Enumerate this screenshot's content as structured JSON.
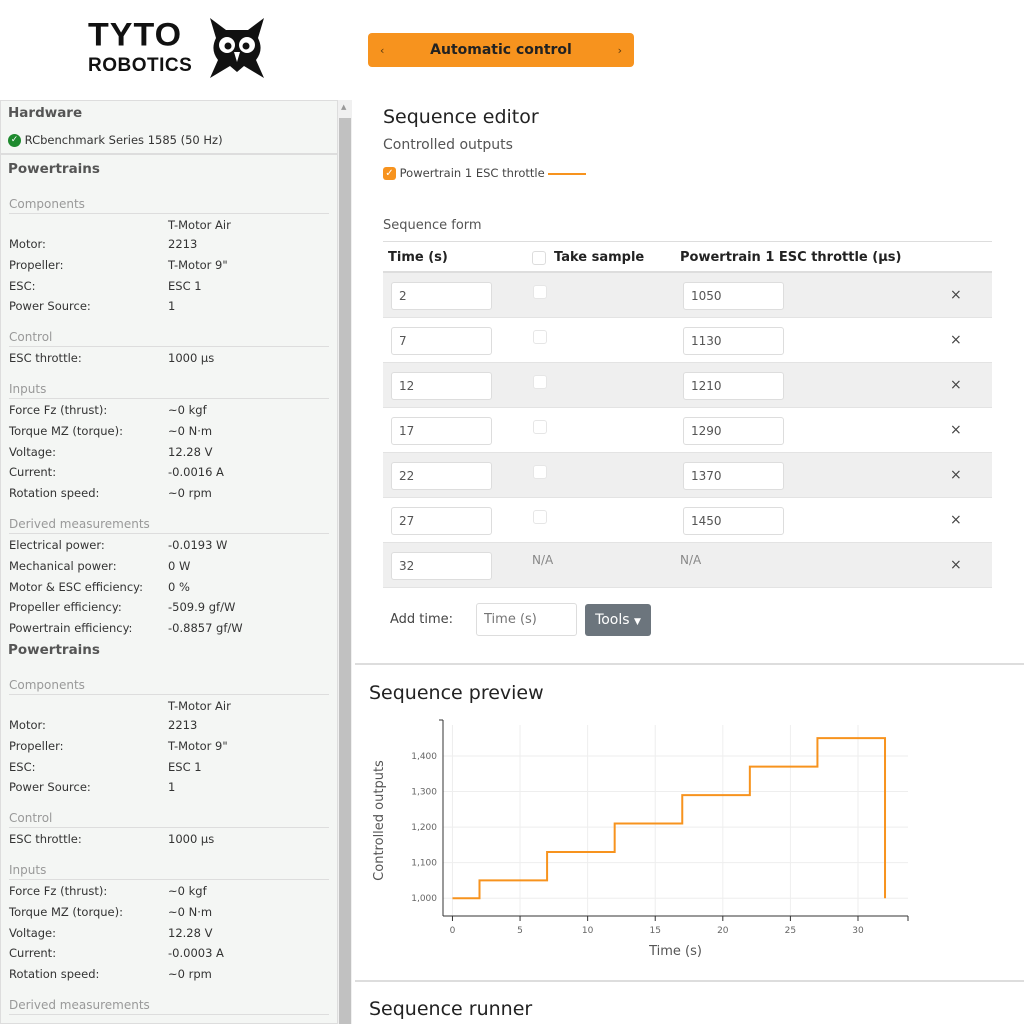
{
  "logo": {
    "line1": "TYTO",
    "line2": "ROBOTICS"
  },
  "mode": {
    "label": "Automatic control",
    "prev": "‹",
    "next": "›"
  },
  "sidebar": {
    "hardware_title": "Hardware",
    "device": "RCbenchmark Series 1585 (50 Hz)",
    "device_status_color": "#1e8a2e",
    "powertrains": [
      {
        "title": "Powertrains",
        "component_name": "T-Motor Air",
        "sections": [
          {
            "label": "Components",
            "rows": [
              [
                "Motor:",
                "2213"
              ],
              [
                "Propeller:",
                "T-Motor 9\""
              ],
              [
                "ESC:",
                "ESC 1"
              ],
              [
                "Power Source:",
                "1"
              ]
            ]
          },
          {
            "label": "Control",
            "rows": [
              [
                "ESC throttle:",
                "1000 µs"
              ]
            ]
          },
          {
            "label": "Inputs",
            "rows": [
              [
                "Force Fz (thrust):",
                "~0 kgf"
              ],
              [
                "Torque MZ (torque):",
                "~0 N·m"
              ],
              [
                "Voltage:",
                "12.28 V"
              ],
              [
                "Current:",
                "-0.0016 A"
              ],
              [
                "Rotation speed:",
                "~0 rpm"
              ]
            ]
          },
          {
            "label": "Derived measurements",
            "rows": [
              [
                "Electrical power:",
                "-0.0193 W"
              ],
              [
                "Mechanical power:",
                "0 W"
              ],
              [
                "Motor & ESC efficiency:",
                "0 %"
              ],
              [
                "Propeller efficiency:",
                "-509.9 gf/W"
              ],
              [
                "Powertrain efficiency:",
                "-0.8857 gf/W"
              ]
            ]
          }
        ]
      },
      {
        "title": "Powertrains",
        "component_name": "T-Motor Air",
        "sections": [
          {
            "label": "Components",
            "rows": [
              [
                "Motor:",
                "2213"
              ],
              [
                "Propeller:",
                "T-Motor 9\""
              ],
              [
                "ESC:",
                "ESC 1"
              ],
              [
                "Power Source:",
                "1"
              ]
            ]
          },
          {
            "label": "Control",
            "rows": [
              [
                "ESC throttle:",
                "1000 µs"
              ]
            ]
          },
          {
            "label": "Inputs",
            "rows": [
              [
                "Force Fz (thrust):",
                "~0 kgf"
              ],
              [
                "Torque MZ (torque):",
                "~0 N·m"
              ],
              [
                "Voltage:",
                "12.28 V"
              ],
              [
                "Current:",
                "-0.0003 A"
              ],
              [
                "Rotation speed:",
                "~0 rpm"
              ]
            ]
          },
          {
            "label": "Derived measurements",
            "rows": []
          }
        ]
      }
    ]
  },
  "editor": {
    "title": "Sequence editor",
    "controlled_outputs_label": "Controlled outputs",
    "output_label": "Powertrain 1 ESC throttle",
    "output_checked": true,
    "accent": "#f7931e",
    "form_label": "Sequence form",
    "columns": [
      "Time (s)",
      "Take sample",
      "Powertrain 1 ESC throttle (µs)"
    ],
    "rows": [
      {
        "time": "2",
        "sample": false,
        "throttle": "1050"
      },
      {
        "time": "7",
        "sample": false,
        "throttle": "1130"
      },
      {
        "time": "12",
        "sample": false,
        "throttle": "1210"
      },
      {
        "time": "17",
        "sample": false,
        "throttle": "1290"
      },
      {
        "time": "22",
        "sample": false,
        "throttle": "1370"
      },
      {
        "time": "27",
        "sample": false,
        "throttle": "1450"
      },
      {
        "time": "32",
        "sample": null,
        "throttle": null,
        "na": "N/A"
      }
    ],
    "delete_glyph": "×",
    "add_time_label": "Add time:",
    "add_time_placeholder": "Time (s)",
    "tools_label": "Tools"
  },
  "preview": {
    "title": "Sequence preview"
  },
  "runner": {
    "title": "Sequence runner"
  },
  "chart_data": {
    "type": "line",
    "step": true,
    "xlabel": "Time (s)",
    "ylabel": "Controlled outputs",
    "xlim": [
      -0.7,
      33.7
    ],
    "ylim": [
      950,
      1487
    ],
    "xticks": [
      0,
      5,
      10,
      15,
      20,
      25,
      30
    ],
    "yticks": [
      1000,
      1100,
      1200,
      1300,
      1400
    ],
    "ytick_labels": [
      "1,000",
      "1,100",
      "1,200",
      "1,300",
      "1,400"
    ],
    "grid": true,
    "color": "#f7931e",
    "x": [
      0,
      2,
      7,
      12,
      17,
      22,
      27,
      32
    ],
    "y": [
      1000,
      1050,
      1130,
      1210,
      1290,
      1370,
      1450,
      1000
    ]
  }
}
